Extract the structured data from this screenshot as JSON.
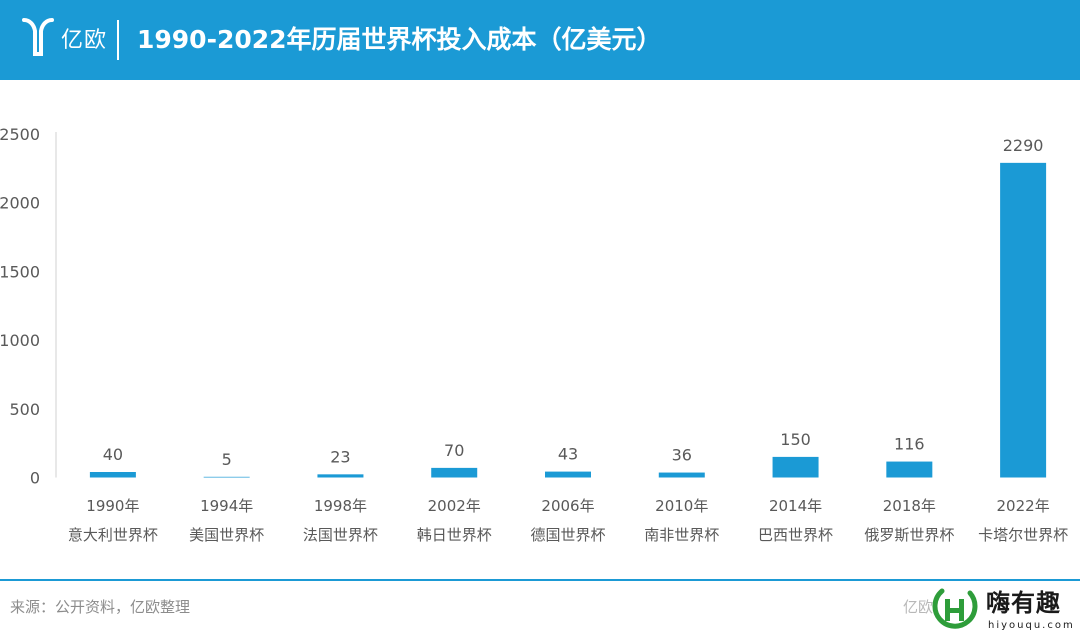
{
  "header": {
    "logo_text": "亿欧",
    "title": "1990-2022年历届世界杯投入成本（亿美元）"
  },
  "footer": {
    "source": "来源：公开资料，亿欧整理",
    "watermark_left": "亿欧",
    "watermark_name": "嗨有趣",
    "watermark_url": "hiyouqu.com"
  },
  "colors": {
    "accent": "#1b9ad5",
    "bar": "#1b9ad5",
    "axis_text": "#595959",
    "footer_text": "#8c8c8c"
  },
  "chart_data": {
    "type": "bar",
    "title": "1990-2022年历届世界杯投入成本（亿美元）",
    "categories": [
      "1990年",
      "1994年",
      "1998年",
      "2002年",
      "2006年",
      "2010年",
      "2014年",
      "2018年",
      "2022年"
    ],
    "category_sublabels": [
      "意大利世界杯",
      "美国世界杯",
      "法国世界杯",
      "韩日世界杯",
      "德国世界杯",
      "南非世界杯",
      "巴西世界杯",
      "俄罗斯世界杯",
      "卡塔尔世界杯"
    ],
    "values": [
      40,
      5,
      23,
      70,
      43,
      36,
      150,
      116,
      2290
    ],
    "ylim": [
      0,
      2500
    ],
    "yticks": [
      0,
      500,
      1000,
      1500,
      2000,
      2500
    ],
    "grid": false,
    "data_labels": true
  }
}
